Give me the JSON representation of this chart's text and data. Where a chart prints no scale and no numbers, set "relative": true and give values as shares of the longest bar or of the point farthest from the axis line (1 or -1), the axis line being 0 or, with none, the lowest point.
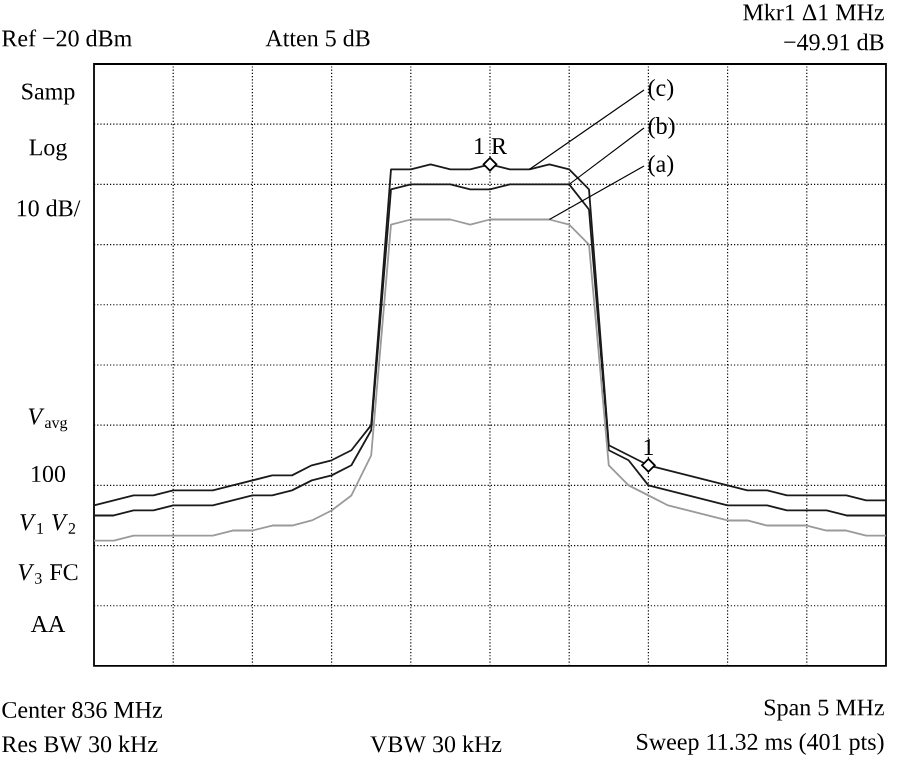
{
  "chart_data": {
    "type": "line",
    "relative": true,
    "grid": true,
    "categories": [
      null,
      null,
      null,
      null,
      null,
      null,
      null,
      null,
      null,
      null,
      null,
      null,
      null,
      null,
      null,
      null,
      null,
      null,
      null,
      null,
      null,
      null,
      null,
      null,
      null,
      null,
      null,
      null,
      null,
      null,
      null,
      null,
      null,
      null,
      null,
      null,
      null,
      null,
      null,
      null,
      null
    ],
    "series": [
      {
        "color": "#1a1a1a",
        "values": [
          0.32,
          0.33,
          0.34,
          0.34,
          0.35,
          0.35,
          0.35,
          0.36,
          0.37,
          0.38,
          0.38,
          0.4,
          0.41,
          0.43,
          0.48,
          0.99,
          0.99,
          1.0,
          0.99,
          0.99,
          1.0,
          0.99,
          0.99,
          1.0,
          0.99,
          0.95,
          0.44,
          0.42,
          0.4,
          0.39,
          0.38,
          0.37,
          0.36,
          0.35,
          0.35,
          0.34,
          0.34,
          0.34,
          0.34,
          0.33,
          0.33
        ]
      },
      {
        "color": "#1a1a1a",
        "values": [
          0.3,
          0.3,
          0.31,
          0.31,
          0.32,
          0.32,
          0.32,
          0.33,
          0.34,
          0.34,
          0.35,
          0.37,
          0.38,
          0.4,
          0.47,
          0.95,
          0.96,
          0.96,
          0.96,
          0.95,
          0.95,
          0.96,
          0.96,
          0.96,
          0.96,
          0.91,
          0.43,
          0.41,
          0.36,
          0.35,
          0.34,
          0.33,
          0.32,
          0.32,
          0.32,
          0.31,
          0.31,
          0.31,
          0.3,
          0.3,
          0.3
        ]
      },
      {
        "color": "#9a9a9a",
        "values": [
          0.25,
          0.25,
          0.26,
          0.26,
          0.26,
          0.26,
          0.26,
          0.27,
          0.27,
          0.28,
          0.28,
          0.29,
          0.31,
          0.34,
          0.42,
          0.88,
          0.89,
          0.89,
          0.89,
          0.88,
          0.89,
          0.89,
          0.89,
          0.89,
          0.88,
          0.84,
          0.4,
          0.36,
          0.34,
          0.32,
          0.31,
          0.3,
          0.29,
          0.29,
          0.28,
          0.28,
          0.28,
          0.27,
          0.27,
          0.26,
          0.26
        ]
      }
    ],
    "annotations": [
      "Ref −20 dBm",
      "Atten 5 dB",
      "Mkr1 Δ1 MHz",
      "−49.91 dB",
      "Samp",
      "Log",
      "10 dB/",
      "*V*$_{avg}$",
      "100",
      "*V*$_{1}$ *V*$_{2}$",
      "*V*$_{3}$ FC",
      "AA",
      "Center 836 MHz",
      "Span 5 MHz",
      "Res BW 30 kHz",
      "VBW 30 kHz",
      "Sweep 11.32 ms (401 pts)",
      "(c)",
      "(b)",
      "(a)",
      "1 R",
      "1"
    ]
  }
}
